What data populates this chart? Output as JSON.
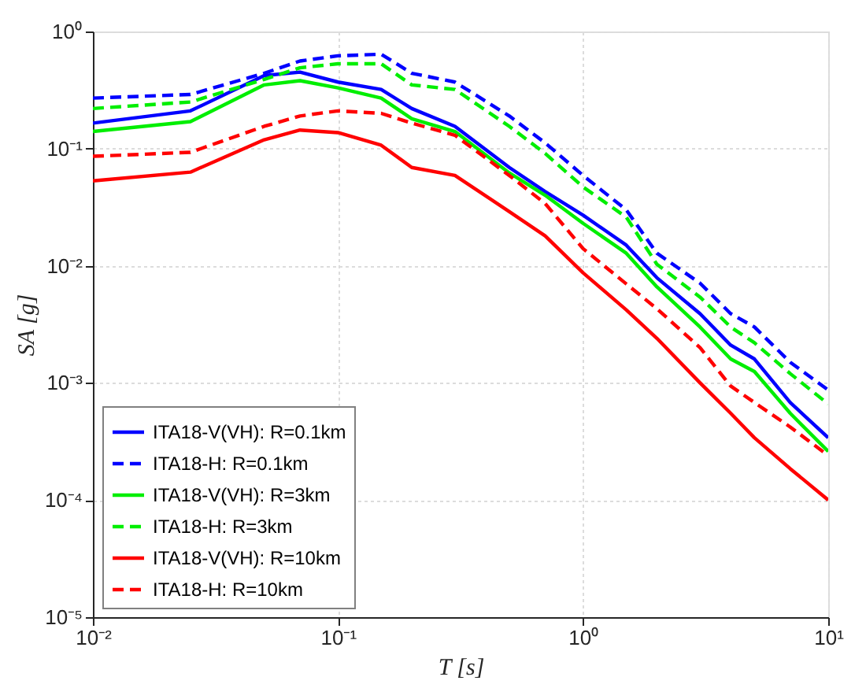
{
  "chart_data": {
    "type": "line",
    "xlabel": "T [s]",
    "ylabel": "SA [g]",
    "log": "xy",
    "grid": true,
    "legend": "bottom left",
    "x": [
      0.01,
      0.025,
      0.05,
      0.07,
      0.1,
      0.15,
      0.2,
      0.3,
      0.5,
      0.7,
      1,
      1.5,
      2,
      3,
      4,
      5,
      7,
      10
    ],
    "xlim": [
      0.01,
      10
    ],
    "ylim": [
      1e-05,
      1
    ],
    "xticks": [
      {
        "value": 0.01,
        "label": "10⁻²"
      },
      {
        "value": 0.1,
        "label": "10⁻¹"
      },
      {
        "value": 1,
        "label": "10⁰"
      },
      {
        "value": 10,
        "label": "10¹"
      }
    ],
    "yticks": [
      {
        "value": 1e-05,
        "label": "10⁻⁵"
      },
      {
        "value": 0.0001,
        "label": "10⁻⁴"
      },
      {
        "value": 0.001,
        "label": "10⁻³"
      },
      {
        "value": 0.01,
        "label": "10⁻²"
      },
      {
        "value": 0.1,
        "label": "10⁻¹"
      },
      {
        "value": 1,
        "label": "10⁰"
      }
    ],
    "series": [
      {
        "name": "ITA18-V(VH): R=0.1km",
        "color": "#0000ff",
        "line_style": "solid",
        "values": [
          0.165,
          0.21,
          0.42,
          0.45,
          0.37,
          0.32,
          0.22,
          0.155,
          0.069,
          0.043,
          0.027,
          0.015,
          0.0079,
          0.0039,
          0.0021,
          0.0016,
          0.00068,
          0.00034
        ]
      },
      {
        "name": "ITA18-H: R=0.1km",
        "color": "#0000ff",
        "line_style": "dashed",
        "values": [
          0.27,
          0.29,
          0.44,
          0.56,
          0.62,
          0.64,
          0.44,
          0.37,
          0.19,
          0.112,
          0.059,
          0.03,
          0.0128,
          0.0071,
          0.0039,
          0.003,
          0.0015,
          0.00087
        ]
      },
      {
        "name": "ITA18-V(VH): R=3km",
        "color": "#00ee00",
        "line_style": "solid",
        "values": [
          0.14,
          0.17,
          0.35,
          0.38,
          0.33,
          0.27,
          0.18,
          0.14,
          0.062,
          0.04,
          0.023,
          0.0128,
          0.0066,
          0.003,
          0.0016,
          0.00125,
          0.00055,
          0.00026
        ]
      },
      {
        "name": "ITA18-H: R=3km",
        "color": "#00ee00",
        "line_style": "dashed",
        "values": [
          0.22,
          0.25,
          0.39,
          0.49,
          0.53,
          0.53,
          0.35,
          0.32,
          0.155,
          0.091,
          0.047,
          0.026,
          0.0103,
          0.0054,
          0.003,
          0.0022,
          0.0012,
          0.00066
        ]
      },
      {
        "name": "ITA18-V(VH): R=10km",
        "color": "#ff0000",
        "line_style": "solid",
        "values": [
          0.053,
          0.063,
          0.119,
          0.144,
          0.137,
          0.107,
          0.069,
          0.059,
          0.029,
          0.018,
          0.0087,
          0.0042,
          0.0024,
          0.001,
          0.00055,
          0.00034,
          0.000185,
          0.0001
        ]
      },
      {
        "name": "ITA18-H: R=10km",
        "color": "#ff0000",
        "line_style": "dashed",
        "values": [
          0.086,
          0.093,
          0.155,
          0.19,
          0.21,
          0.2,
          0.165,
          0.13,
          0.059,
          0.034,
          0.014,
          0.007,
          0.0043,
          0.002,
          0.00094,
          0.00068,
          0.00042,
          0.00024
        ]
      }
    ]
  }
}
